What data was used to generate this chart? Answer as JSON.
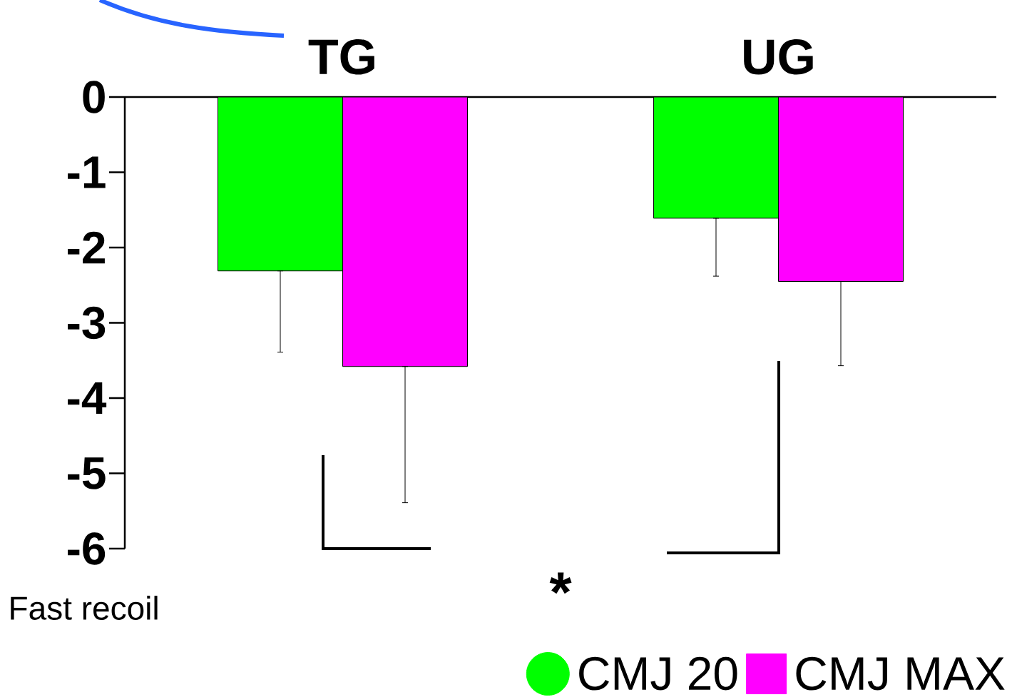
{
  "chart_data": {
    "type": "bar",
    "categories": [
      "TG",
      "UG"
    ],
    "series": [
      {
        "name": "CMJ 20",
        "color": "#00ff00",
        "values": [
          -2.31,
          -1.61
        ],
        "errors": [
          [
            -3.39,
            -2.31
          ],
          [
            -2.38,
            -1.61
          ]
        ],
        "marker": "circle"
      },
      {
        "name": "CMJ MAX",
        "color": "#ff00ff",
        "values": [
          -3.58,
          -2.45
        ],
        "errors": [
          [
            -5.39,
            -3.58
          ],
          [
            -3.57,
            -2.45
          ]
        ],
        "marker": "square"
      }
    ],
    "ylim": [
      -6,
      0
    ],
    "yticks": [
      -6,
      -5,
      -4,
      -3,
      -2,
      -1,
      0
    ],
    "legend": "bottom right",
    "annotations": [
      "*",
      "Fast recoil"
    ]
  }
}
